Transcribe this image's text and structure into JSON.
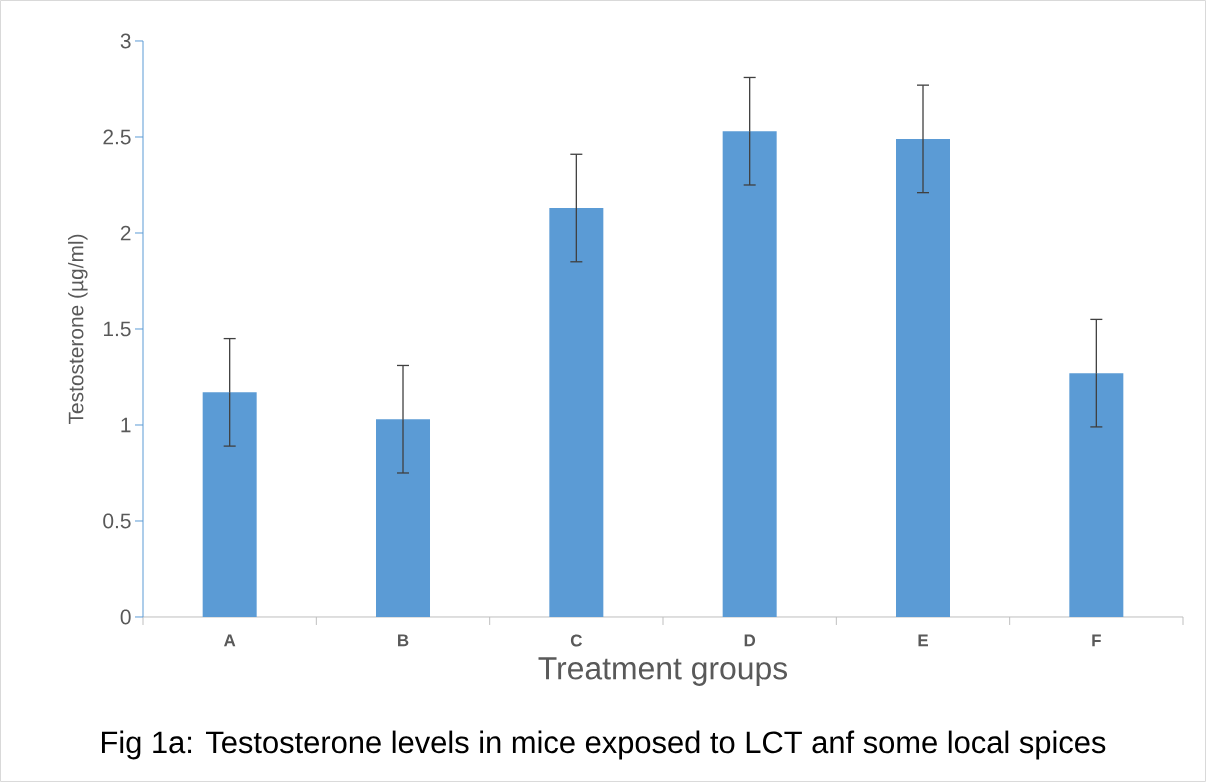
{
  "chart_data": {
    "type": "bar",
    "xlabel": "Treatment groups",
    "ylabel": "Testosterone (µg/ml)",
    "categories": [
      "A",
      "B",
      "C",
      "D",
      "E",
      "F"
    ],
    "values": [
      1.17,
      1.03,
      2.13,
      2.53,
      2.49,
      1.27
    ],
    "errors": [
      0.28,
      0.28,
      0.28,
      0.28,
      0.28,
      0.28
    ],
    "color": "#5b9bd5",
    "ylim": [
      0,
      3
    ],
    "yticks": [
      0,
      0.5,
      1,
      1.5,
      2,
      2.5,
      3
    ],
    "annotations": [
      "Fig 1a: Testosterone levels in mice exposed to LCT anf some local spices"
    ]
  }
}
